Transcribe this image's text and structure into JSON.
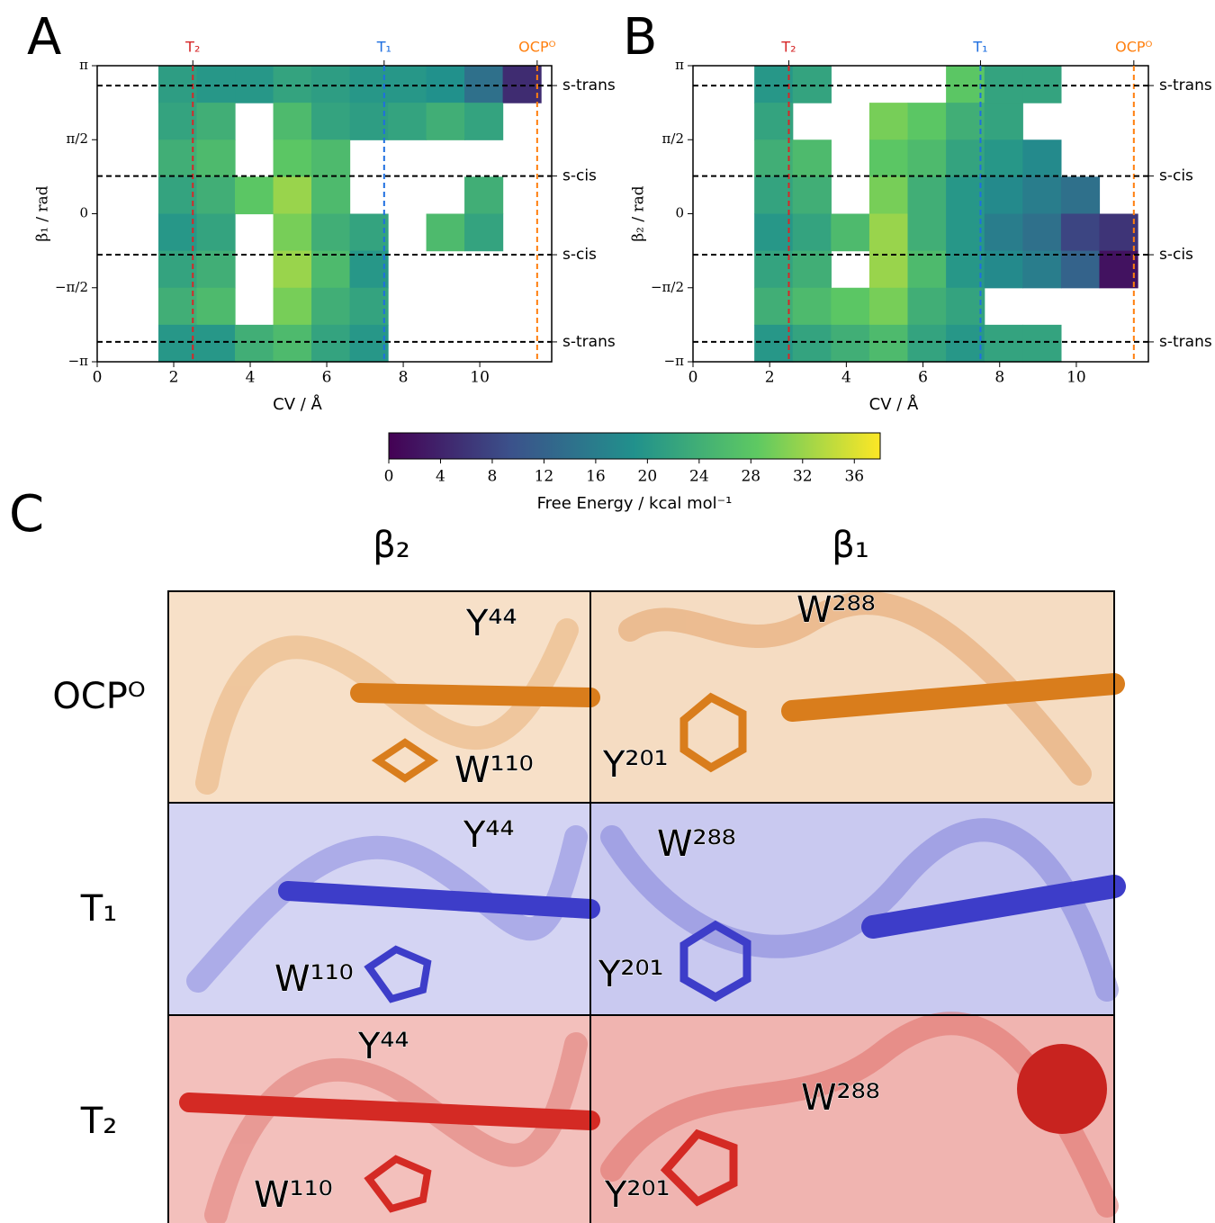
{
  "chart_data": [
    {
      "type": "heatmap",
      "panel": "A",
      "xlabel": "CV / Å",
      "ylabel": "β₁ / rad",
      "xlim": [
        0,
        11.88
      ],
      "ylim": [
        -3.14159,
        3.14159
      ],
      "xticks": [
        0,
        2,
        4,
        6,
        8,
        10
      ],
      "yticks": [
        {
          "value": -3.14159,
          "label": "−π"
        },
        {
          "value": -1.5708,
          "label": "−π/2"
        },
        0,
        {
          "value": 1.5708,
          "label": "π/2"
        },
        {
          "value": 3.14159,
          "label": "π"
        }
      ],
      "x_edges": [
        1.6,
        2.6,
        3.6,
        4.6,
        5.6,
        6.6,
        7.6,
        8.6,
        9.6,
        10.6,
        11.6
      ],
      "y_edges": [
        3.14159,
        2.35619,
        1.5708,
        0.7854,
        0,
        -0.7854,
        -1.5708,
        -2.35619,
        -3.14159
      ],
      "values": [
        [
          21,
          20,
          20,
          22,
          21,
          20,
          20,
          19,
          14,
          5
        ],
        [
          22,
          24,
          null,
          26,
          22,
          21,
          22,
          24,
          22,
          null
        ],
        [
          24,
          26,
          null,
          28,
          26,
          null,
          null,
          null,
          null,
          null
        ],
        [
          22,
          24,
          28,
          32,
          26,
          null,
          null,
          null,
          24,
          null
        ],
        [
          20,
          22,
          null,
          30,
          24,
          22,
          null,
          26,
          22,
          null
        ],
        [
          22,
          24,
          null,
          32,
          26,
          20,
          null,
          null,
          null,
          null
        ],
        [
          24,
          26,
          null,
          30,
          24,
          22,
          null,
          null,
          null,
          null
        ],
        [
          20,
          20,
          24,
          26,
          22,
          20,
          null,
          null,
          null,
          null
        ]
      ],
      "vlines": [
        {
          "value": 2.5,
          "label": "T₂",
          "color": "#d62728"
        },
        {
          "value": 7.5,
          "label": "T₁",
          "color": "#1f6fe0"
        },
        {
          "value": 11.5,
          "label": "OCPᴼ",
          "color": "#ff7f0e"
        }
      ],
      "hlines": [
        {
          "value": 2.72,
          "label": "s-trans"
        },
        {
          "value": 0.8,
          "label": "s-cis"
        },
        {
          "value": -0.87,
          "label": "s-cis"
        },
        {
          "value": -2.72,
          "label": "s-trans"
        }
      ]
    },
    {
      "type": "heatmap",
      "panel": "B",
      "xlabel": "CV / Å",
      "ylabel": "β₂ / rad",
      "xlim": [
        0,
        11.88
      ],
      "ylim": [
        -3.14159,
        3.14159
      ],
      "xticks": [
        0,
        2,
        4,
        6,
        8,
        10
      ],
      "yticks": [
        {
          "value": -3.14159,
          "label": "−π"
        },
        {
          "value": -1.5708,
          "label": "−π/2"
        },
        0,
        {
          "value": 1.5708,
          "label": "π/2"
        },
        {
          "value": 3.14159,
          "label": "π"
        }
      ],
      "x_edges": [
        1.6,
        2.6,
        3.6,
        4.6,
        5.6,
        6.6,
        7.6,
        8.6,
        9.6,
        10.6,
        11.6
      ],
      "y_edges": [
        3.14159,
        2.35619,
        1.5708,
        0.7854,
        0,
        -0.7854,
        -1.5708,
        -2.35619,
        -3.14159
      ],
      "values": [
        [
          20,
          22,
          null,
          null,
          null,
          28,
          22,
          22,
          null,
          null
        ],
        [
          22,
          null,
          null,
          30,
          28,
          24,
          22,
          null,
          null,
          null
        ],
        [
          24,
          26,
          null,
          28,
          26,
          22,
          20,
          18,
          null,
          null
        ],
        [
          22,
          24,
          null,
          30,
          24,
          20,
          18,
          16,
          14,
          null
        ],
        [
          20,
          22,
          26,
          32,
          24,
          20,
          16,
          14,
          8,
          6
        ],
        [
          22,
          24,
          null,
          32,
          26,
          20,
          18,
          16,
          12,
          2
        ],
        [
          24,
          26,
          28,
          30,
          24,
          22,
          null,
          null,
          null,
          null
        ],
        [
          20,
          22,
          24,
          26,
          22,
          20,
          22,
          22,
          null,
          null
        ]
      ],
      "vlines": [
        {
          "value": 2.5,
          "label": "T₂",
          "color": "#d62728"
        },
        {
          "value": 7.5,
          "label": "T₁",
          "color": "#1f6fe0"
        },
        {
          "value": 11.5,
          "label": "OCPᴼ",
          "color": "#ff7f0e"
        }
      ],
      "hlines": [
        {
          "value": 2.72,
          "label": "s-trans"
        },
        {
          "value": 0.8,
          "label": "s-cis"
        },
        {
          "value": -0.87,
          "label": "s-cis"
        },
        {
          "value": -2.72,
          "label": "s-trans"
        }
      ]
    }
  ],
  "colorbar": {
    "label": "Free Energy / kcal mol⁻¹",
    "clim": [
      0,
      38
    ],
    "ticks": [
      0,
      4,
      8,
      12,
      16,
      20,
      24,
      28,
      32,
      36
    ]
  },
  "panel_c": {
    "label": "C",
    "columns": [
      "β₂",
      "β₁"
    ],
    "rows": [
      {
        "label": "OCPᴼ",
        "cells": [
          [
            "Y⁴⁴",
            "W¹¹⁰"
          ],
          [
            "W²⁸⁸",
            "Y²⁰¹"
          ]
        ]
      },
      {
        "label": "T₁",
        "cells": [
          [
            "Y⁴⁴",
            "W¹¹⁰"
          ],
          [
            "W²⁸⁸",
            "Y²⁰¹"
          ]
        ]
      },
      {
        "label": "T₂",
        "cells": [
          [
            "Y⁴⁴",
            "W¹¹⁰"
          ],
          [
            "W²⁸⁸",
            "Y²⁰¹"
          ]
        ]
      }
    ]
  }
}
